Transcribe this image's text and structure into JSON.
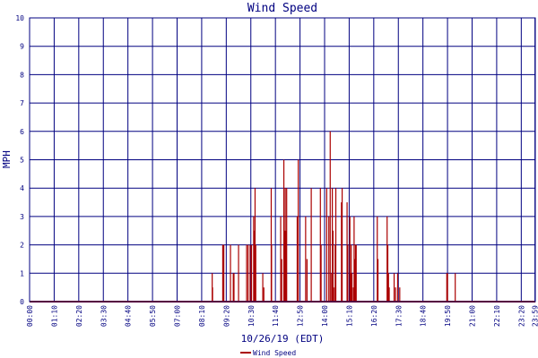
{
  "colors": {
    "axis": "#000080",
    "grid": "#000080",
    "series": "#aa0000",
    "background": "#ffffff"
  },
  "chart_data": {
    "type": "bar",
    "title": "Wind Speed",
    "xlabel": "10/26/19 (EDT)",
    "ylabel": "MPH",
    "ylim": [
      0,
      10
    ],
    "yticks": [
      "0",
      "1",
      "2",
      "3",
      "4",
      "5",
      "6",
      "7",
      "8",
      "9",
      "10"
    ],
    "xlim_hours": [
      0,
      24
    ],
    "xtick_labels": [
      "00:00",
      "01:10",
      "02:20",
      "03:30",
      "04:40",
      "05:50",
      "07:00",
      "08:10",
      "09:20",
      "10:30",
      "11:40",
      "12:50",
      "14:00",
      "15:10",
      "16:20",
      "17:30",
      "18:40",
      "19:50",
      "21:00",
      "22:10",
      "23:20",
      "23:59"
    ],
    "grid": true,
    "legend_position": "bottom-left",
    "series": [
      {
        "name": "Wind Speed",
        "times": [
          "08:40",
          "08:41",
          "09:10",
          "09:13",
          "09:32",
          "09:40",
          "09:42",
          "09:55",
          "10:18",
          "10:22",
          "10:28",
          "10:32",
          "10:38",
          "10:40",
          "10:42",
          "10:44",
          "11:04",
          "11:07",
          "11:28",
          "11:29",
          "11:55",
          "11:58",
          "12:04",
          "12:06",
          "12:08",
          "12:10",
          "12:12",
          "12:42",
          "12:45",
          "13:06",
          "13:10",
          "13:22",
          "13:48",
          "13:50",
          "14:06",
          "14:12",
          "14:16",
          "14:20",
          "14:22",
          "14:24",
          "14:26",
          "14:30",
          "14:32",
          "14:48",
          "14:50",
          "15:04",
          "15:06",
          "15:12",
          "15:14",
          "15:16",
          "15:18",
          "15:22",
          "15:24",
          "15:26",
          "15:28",
          "15:30",
          "16:30",
          "16:32",
          "16:58",
          "17:00",
          "17:02",
          "17:04",
          "17:18",
          "17:22",
          "17:28",
          "17:34",
          "19:48",
          "19:50",
          "20:12"
        ],
        "values": [
          1,
          0.5,
          2,
          2,
          2,
          1,
          1,
          2,
          2,
          2,
          2,
          2,
          3,
          2.5,
          4,
          2,
          1,
          0.5,
          4,
          2,
          3,
          1.5,
          5,
          2.5,
          4,
          2.5,
          4,
          3,
          5,
          3,
          1.5,
          4,
          4,
          2,
          4,
          3,
          6,
          1,
          4,
          2.5,
          0.5,
          2,
          4,
          3.5,
          4,
          3.5,
          2,
          3,
          1,
          2,
          1,
          0.5,
          3,
          1.5,
          2,
          2,
          3,
          1.5,
          3,
          2,
          1,
          0.5,
          1,
          0.5,
          1,
          0.5,
          1,
          1,
          1
        ]
      }
    ]
  }
}
